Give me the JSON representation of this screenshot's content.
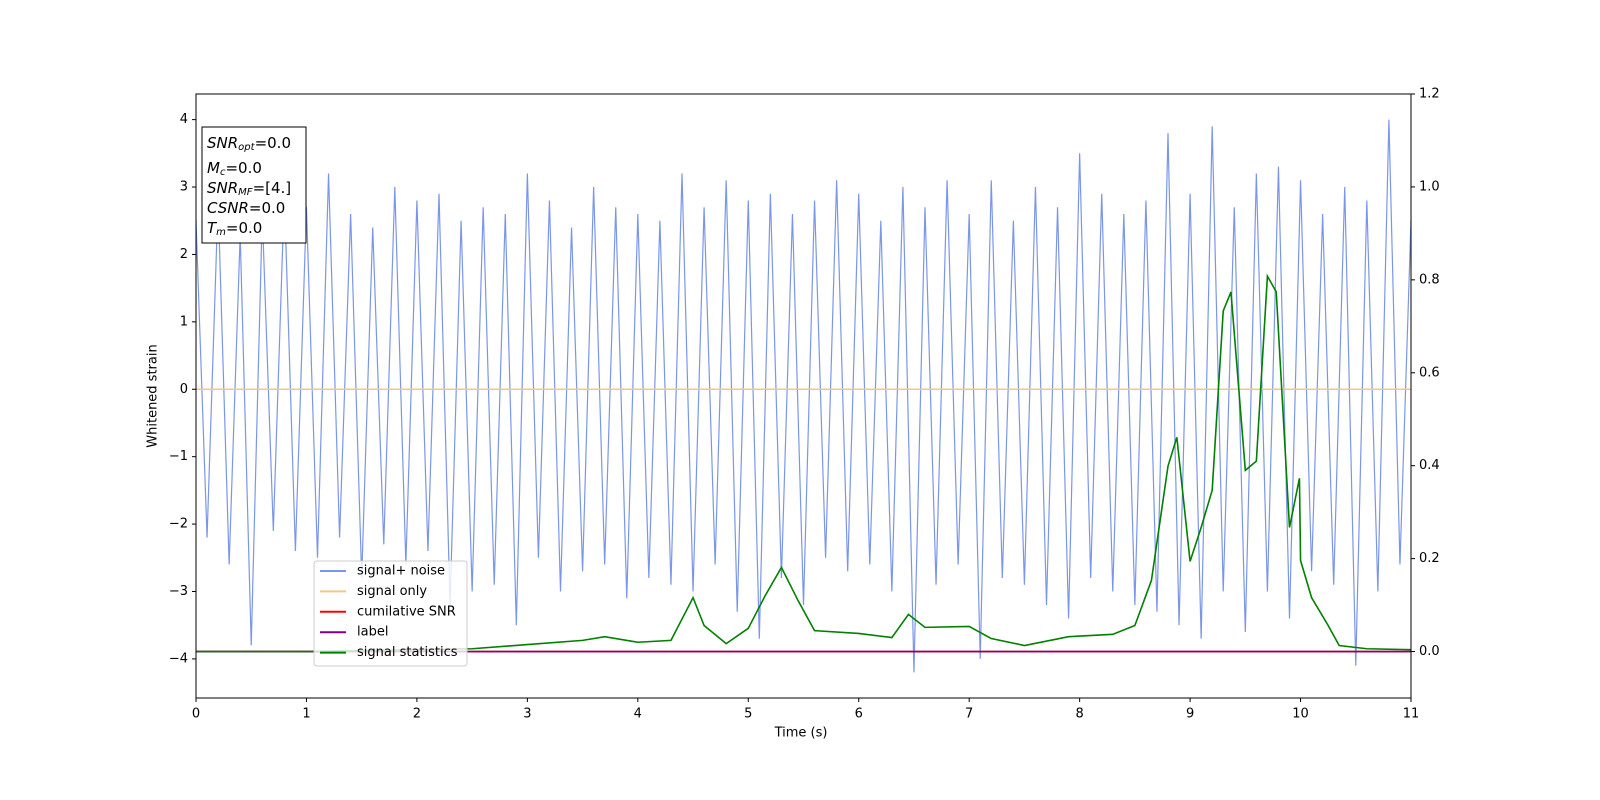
{
  "chart_data": {
    "type": "line",
    "xlabel": "Time (s)",
    "ylabel": "Whitened strain",
    "xlim": [
      0,
      11
    ],
    "xticks": [
      0,
      1,
      2,
      3,
      4,
      5,
      6,
      7,
      8,
      9,
      10,
      11
    ],
    "ylim": [
      -4.58,
      4.38
    ],
    "yticks": [
      {
        "value": -4,
        "label": "−4"
      },
      {
        "value": -3,
        "label": "−3"
      },
      {
        "value": -2,
        "label": "−2"
      },
      {
        "value": -1,
        "label": "−1"
      },
      0,
      1,
      2,
      3,
      4
    ],
    "y2lim": [
      -0.1,
      1.2
    ],
    "y2ticks": [
      {
        "value": 0,
        "label": "0.0"
      },
      0.2,
      0.4,
      0.6,
      0.8,
      {
        "value": 1,
        "label": "1.0"
      },
      1.2
    ],
    "annotation_lines": [
      {
        "main": "SNR",
        "sub": "opt",
        "text": "=0.0"
      },
      {
        "main": "M",
        "sub": "c",
        "text": "=0.0"
      },
      {
        "main": "SNR",
        "sub": "MF",
        "text": "=[4.]"
      },
      {
        "main": "CSNR",
        "text": "=0.0"
      },
      {
        "main": "T",
        "sub": "m",
        "text": "=0.0"
      }
    ],
    "series": [
      {
        "name": "signal+ noise",
        "color": "#7b96e8",
        "x": [
          0,
          0.1,
          0.2,
          0.3,
          0.4,
          0.5,
          0.6,
          0.7,
          0.8,
          0.9,
          1,
          1.1,
          1.2,
          1.3,
          1.4,
          1.5,
          1.6,
          1.7,
          1.8,
          1.9,
          2,
          2.1,
          2.2,
          2.3,
          2.4,
          2.5,
          2.6,
          2.7,
          2.8,
          2.9,
          3,
          3.1,
          3.2,
          3.3,
          3.4,
          3.5,
          3.6,
          3.7,
          3.8,
          3.9,
          4,
          4.1,
          4.2,
          4.3,
          4.4,
          4.5,
          4.6,
          4.7,
          4.8,
          4.9,
          5,
          5.1,
          5.2,
          5.3,
          5.4,
          5.5,
          5.6,
          5.7,
          5.8,
          5.9,
          6,
          6.1,
          6.2,
          6.3,
          6.4,
          6.5,
          6.6,
          6.7,
          6.8,
          6.9,
          7,
          7.1,
          7.2,
          7.3,
          7.4,
          7.5,
          7.6,
          7.7,
          7.8,
          7.9,
          8,
          8.1,
          8.2,
          8.3,
          8.4,
          8.5,
          8.6,
          8.7,
          8.8,
          8.9,
          9,
          9.1,
          9.2,
          9.3,
          9.4,
          9.5,
          9.6,
          9.7,
          9.8,
          9.9,
          10,
          10.1,
          10.2,
          10.3,
          10.4,
          10.5,
          10.6,
          10.7,
          10.8,
          10.9,
          11
        ],
        "values": [
          2.5,
          -2.2,
          2.8,
          -2.6,
          2.3,
          -3.8,
          2.6,
          -2.1,
          2.9,
          -2.4,
          2.7,
          -2.5,
          3.2,
          -2.2,
          2.6,
          -2.8,
          2.4,
          -2.3,
          3.0,
          -2.6,
          2.8,
          -2.4,
          2.9,
          -3.2,
          2.5,
          -3.0,
          2.7,
          -2.9,
          2.6,
          -3.5,
          3.2,
          -2.5,
          2.8,
          -3.0,
          2.4,
          -2.7,
          3.0,
          -2.6,
          2.7,
          -3.1,
          2.6,
          -2.8,
          2.5,
          -2.9,
          3.2,
          -3.0,
          2.7,
          -2.6,
          3.1,
          -3.3,
          2.8,
          -3.7,
          2.9,
          -2.8,
          2.6,
          -3.2,
          2.8,
          -2.5,
          3.1,
          -2.7,
          2.9,
          -2.6,
          2.5,
          -3.0,
          3.0,
          -4.2,
          2.7,
          -2.9,
          3.1,
          -2.6,
          2.6,
          -4.0,
          3.1,
          -2.8,
          2.5,
          -2.9,
          3.0,
          -3.2,
          2.7,
          -3.4,
          3.5,
          -2.8,
          2.9,
          -3.0,
          2.6,
          -3.2,
          2.8,
          -3.3,
          3.8,
          -3.5,
          2.9,
          -3.7,
          3.9,
          -3.0,
          2.7,
          -3.6,
          3.2,
          -3.0,
          3.3,
          -3.4,
          3.1,
          -2.7,
          2.6,
          -2.9,
          3.0,
          -4.1,
          2.8,
          -3.0,
          4.0,
          -2.6,
          2.5
        ]
      },
      {
        "name": "signal only",
        "color": "#f5c58a",
        "x": [
          0,
          11
        ],
        "values": [
          0,
          0
        ]
      },
      {
        "name": "cumilative SNR",
        "color": "#ff0000",
        "axis": "y2",
        "x": [
          0,
          11
        ],
        "values": [
          0,
          0
        ]
      },
      {
        "name": "label",
        "color": "#800080",
        "axis": "y2",
        "x": [
          0,
          11
        ],
        "values": [
          0,
          0
        ]
      },
      {
        "name": "signal statistics",
        "color": "#008000",
        "axis": "y2",
        "x": [
          0,
          0.5,
          1,
          1.5,
          2,
          2.5,
          3,
          3.5,
          3.7,
          4,
          4.3,
          4.5,
          4.6,
          4.8,
          5,
          5.15,
          5.3,
          5.45,
          5.6,
          6,
          6.3,
          6.45,
          6.6,
          7,
          7.2,
          7.5,
          7.9,
          8.3,
          8.5,
          8.65,
          8.8,
          8.88,
          9,
          9.1,
          9.2,
          9.3,
          9.37,
          9.5,
          9.6,
          9.7,
          9.78,
          9.9,
          9.99,
          10,
          10.1,
          10.25,
          10.35,
          10.6,
          11
        ],
        "values": [
          0,
          0,
          0,
          0.002,
          0.004,
          0.006,
          0.015,
          0.024,
          0.032,
          0.02,
          0.024,
          0.116,
          0.056,
          0.017,
          0.05,
          0.119,
          0.181,
          0.11,
          0.045,
          0.039,
          0.03,
          0.08,
          0.052,
          0.054,
          0.028,
          0.013,
          0.032,
          0.037,
          0.056,
          0.153,
          0.399,
          0.461,
          0.194,
          0.267,
          0.347,
          0.733,
          0.774,
          0.39,
          0.41,
          0.808,
          0.774,
          0.267,
          0.373,
          0.196,
          0.116,
          0.056,
          0.013,
          0.006,
          0.004
        ]
      }
    ]
  }
}
